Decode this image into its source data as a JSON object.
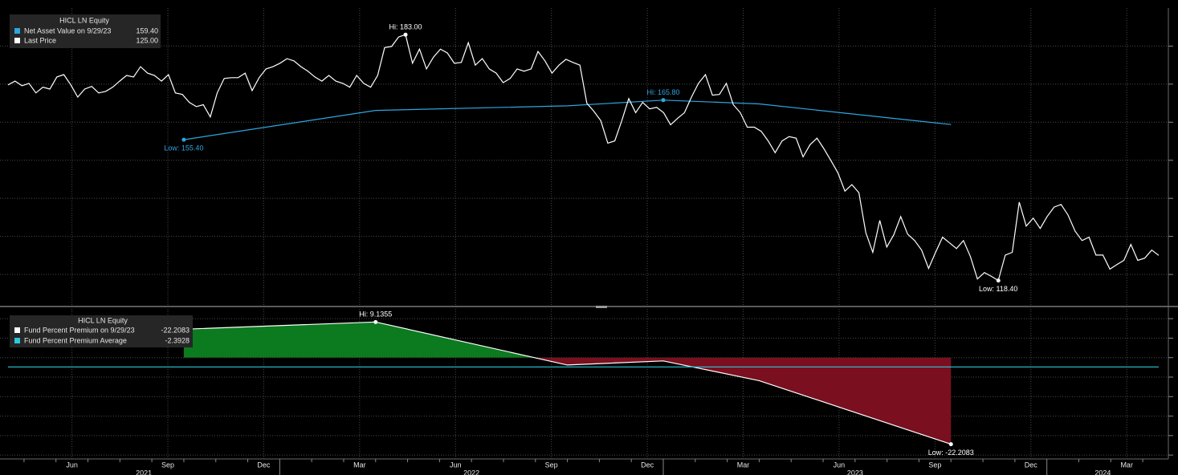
{
  "chart_data": [
    {
      "type": "line",
      "title": "HICL LN Equity",
      "xlim": [
        "2021-04",
        "2024-04"
      ],
      "ylim": [
        112,
        190
      ],
      "yticks": [
        120,
        130,
        140,
        150,
        160,
        170,
        180
      ],
      "grid": true,
      "series": [
        {
          "name": "Net Asset Value on 9/29/23",
          "color": "#2ea6e0",
          "x": [
            "2021-09",
            "2022-03",
            "2022-09",
            "2022-12",
            "2023-03",
            "2023-09"
          ],
          "values": [
            155.4,
            163.1,
            164.3,
            165.8,
            164.8,
            159.4
          ],
          "last_label": "159.40",
          "high_label": "Hi: 165.80",
          "low_label": "Low: 155.40"
        },
        {
          "name": "Last Price",
          "color": "#ffffff",
          "values": [
            169.8,
            170.8,
            169.6,
            170.2,
            167.7,
            169.2,
            168.7,
            171.9,
            172.5,
            169.8,
            166.6,
            168.7,
            169.4,
            167.7,
            168.1,
            169.2,
            170.8,
            172.3,
            171.9,
            174.6,
            172.9,
            172.3,
            170.8,
            172.5,
            167.7,
            167.3,
            165.2,
            164.1,
            164.6,
            161.4,
            167.7,
            171.5,
            171.7,
            171.7,
            172.9,
            168.3,
            171.7,
            174.0,
            174.6,
            175.5,
            176.7,
            176.1,
            174.6,
            173.4,
            171.9,
            170.8,
            172.3,
            170.8,
            170.2,
            169.2,
            172.3,
            170.2,
            169.2,
            172.3,
            179.6,
            179.9,
            182.4,
            183.0,
            175.5,
            179.2,
            174.0,
            177.1,
            179.2,
            178.2,
            175.5,
            175.7,
            180.9,
            175.0,
            176.7,
            174.0,
            172.9,
            170.4,
            171.5,
            174.0,
            173.4,
            174.0,
            178.6,
            176.1,
            172.9,
            175.0,
            176.5,
            175.7,
            175.0,
            165.0,
            162.9,
            160.4,
            154.5,
            155.1,
            160.4,
            166.2,
            162.5,
            165.2,
            163.5,
            163.9,
            162.5,
            159.3,
            161.0,
            162.5,
            166.6,
            170.2,
            172.5,
            167.1,
            167.3,
            170.2,
            164.6,
            162.5,
            158.7,
            158.7,
            157.6,
            155.1,
            152.0,
            155.1,
            156.2,
            155.8,
            150.9,
            154.1,
            155.8,
            153.0,
            149.9,
            146.7,
            141.9,
            143.6,
            141.5,
            131.0,
            125.8,
            134.2,
            127.2,
            130.4,
            135.2,
            130.6,
            128.9,
            126.4,
            121.6,
            125.8,
            129.8,
            128.3,
            126.8,
            128.9,
            124.7,
            118.8,
            120.5,
            119.5,
            118.4,
            125.1,
            125.8,
            139.0,
            132.7,
            134.8,
            132.1,
            135.2,
            137.7,
            138.4,
            135.6,
            131.4,
            128.9,
            129.8,
            125.1,
            125.1,
            121.4,
            122.6,
            123.7,
            127.9,
            123.7,
            124.3,
            126.4,
            125.0
          ],
          "last_label": "125.00",
          "high_label": "Hi: 183.00",
          "low_label": "Low: 118.40"
        }
      ]
    },
    {
      "type": "area",
      "title": "HICL LN Equity",
      "xlim": [
        "2021-04",
        "2024-04"
      ],
      "ylim": [
        -26,
        12.5
      ],
      "yticks": [
        -25,
        -20,
        -15,
        -10,
        -5,
        0,
        5,
        10
      ],
      "grid": true,
      "series": [
        {
          "name": "Fund Percent Premium on 9/29/23",
          "color": "#ffffff",
          "positive_color": "#0c7a1f",
          "negative_color": "#7a0f1f",
          "x": [
            "2021-09",
            "2022-03",
            "2022-09",
            "2022-12",
            "2023-03",
            "2023-09"
          ],
          "values": [
            7.3,
            9.1355,
            -1.9,
            -0.85,
            -5.9,
            -22.2083
          ],
          "high_label": "Hi: 9.1355",
          "low_label": "Low: -22.2083"
        },
        {
          "name": "Fund Percent Premium Average",
          "color": "#2cc8dc",
          "value": -2.3928
        }
      ],
      "xticks": [
        {
          "value": "2021-06",
          "label": "Jun"
        },
        {
          "value": "2021-09",
          "label": "Sep"
        },
        {
          "value": "2021-12",
          "label": "Dec"
        },
        {
          "value": "2022-03",
          "label": "Mar"
        },
        {
          "value": "2022-06",
          "label": "Jun"
        },
        {
          "value": "2022-09",
          "label": "Sep"
        },
        {
          "value": "2022-12",
          "label": "Dec"
        },
        {
          "value": "2023-03",
          "label": "Mar"
        },
        {
          "value": "2023-06",
          "label": "Jun"
        },
        {
          "value": "2023-09",
          "label": "Sep"
        },
        {
          "value": "2023-12",
          "label": "Dec"
        },
        {
          "value": "2024-03",
          "label": "Mar"
        }
      ],
      "years": [
        2021,
        2022,
        2023,
        2024
      ]
    }
  ]
}
